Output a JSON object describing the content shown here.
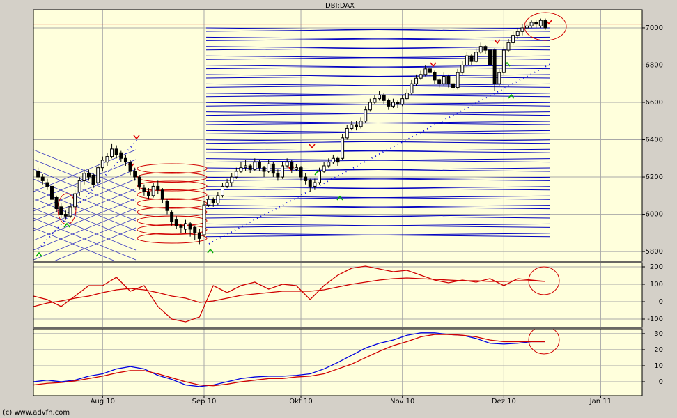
{
  "credit": "(c) www.advfn.com",
  "chart_data": [
    {
      "type": "candlestick",
      "title": "DBI:DAX",
      "up_color": "#ffffff",
      "down_color": "#000000",
      "hline": 7020,
      "hline_color": "#e03020",
      "xlim": [
        -1,
        131
      ],
      "ylim": [
        5748,
        7097
      ],
      "yticks": [
        5800,
        6000,
        6200,
        6400,
        6600,
        6800,
        7000
      ],
      "grid": true,
      "ohlc": [
        [
          6230,
          6250,
          6180,
          6200
        ],
        [
          6200,
          6215,
          6160,
          6180
        ],
        [
          6170,
          6190,
          6130,
          6150
        ],
        [
          6150,
          6160,
          6060,
          6080
        ],
        [
          6090,
          6100,
          6010,
          6030
        ],
        [
          6040,
          6060,
          5980,
          6000
        ],
        [
          6000,
          6020,
          5970,
          5990
        ],
        [
          5990,
          6060,
          5980,
          6040
        ],
        [
          6040,
          6130,
          6030,
          6110
        ],
        [
          6120,
          6200,
          6100,
          6180
        ],
        [
          6180,
          6240,
          6160,
          6220
        ],
        [
          6220,
          6240,
          6180,
          6200
        ],
        [
          6210,
          6220,
          6140,
          6160
        ],
        [
          6170,
          6270,
          6160,
          6250
        ],
        [
          6250,
          6310,
          6230,
          6290
        ],
        [
          6280,
          6330,
          6260,
          6310
        ],
        [
          6310,
          6380,
          6300,
          6350
        ],
        [
          6350,
          6370,
          6300,
          6320
        ],
        [
          6330,
          6340,
          6280,
          6300
        ],
        [
          6300,
          6320,
          6260,
          6280
        ],
        [
          6280,
          6290,
          6210,
          6230
        ],
        [
          6230,
          6250,
          6180,
          6200
        ],
        [
          6200,
          6210,
          6130,
          6150
        ],
        [
          6140,
          6160,
          6100,
          6120
        ],
        [
          6120,
          6140,
          6080,
          6100
        ],
        [
          6100,
          6170,
          6090,
          6150
        ],
        [
          6150,
          6180,
          6110,
          6130
        ],
        [
          6130,
          6140,
          6060,
          6080
        ],
        [
          6070,
          6080,
          6000,
          6020
        ],
        [
          6010,
          6020,
          5940,
          5960
        ],
        [
          5970,
          5990,
          5920,
          5940
        ],
        [
          5940,
          5950,
          5900,
          5930
        ],
        [
          5920,
          5970,
          5900,
          5950
        ],
        [
          5950,
          5960,
          5880,
          5920
        ],
        [
          5930,
          5940,
          5860,
          5900
        ],
        [
          5900,
          5920,
          5840,
          5870
        ],
        [
          5890,
          6070,
          5880,
          6050
        ],
        [
          6050,
          6100,
          6040,
          6080
        ],
        [
          6080,
          6090,
          6040,
          6060
        ],
        [
          6060,
          6120,
          6050,
          6100
        ],
        [
          6100,
          6170,
          6090,
          6150
        ],
        [
          6150,
          6190,
          6140,
          6170
        ],
        [
          6170,
          6220,
          6150,
          6200
        ],
        [
          6200,
          6250,
          6190,
          6230
        ],
        [
          6230,
          6280,
          6220,
          6250
        ],
        [
          6250,
          6290,
          6230,
          6260
        ],
        [
          6260,
          6270,
          6220,
          6240
        ],
        [
          6240,
          6300,
          6230,
          6280
        ],
        [
          6280,
          6290,
          6230,
          6250
        ],
        [
          6250,
          6260,
          6200,
          6230
        ],
        [
          6230,
          6290,
          6220,
          6270
        ],
        [
          6270,
          6280,
          6200,
          6220
        ],
        [
          6220,
          6240,
          6180,
          6200
        ],
        [
          6200,
          6280,
          6190,
          6260
        ],
        [
          6260,
          6300,
          6250,
          6280
        ],
        [
          6280,
          6290,
          6220,
          6240
        ],
        [
          6240,
          6270,
          6230,
          6250
        ],
        [
          6250,
          6260,
          6180,
          6200
        ],
        [
          6200,
          6220,
          6160,
          6180
        ],
        [
          6180,
          6190,
          6120,
          6150
        ],
        [
          6150,
          6190,
          6130,
          6170
        ],
        [
          6170,
          6250,
          6160,
          6230
        ],
        [
          6230,
          6280,
          6220,
          6260
        ],
        [
          6260,
          6300,
          6250,
          6280
        ],
        [
          6280,
          6320,
          6270,
          6300
        ],
        [
          6300,
          6310,
          6260,
          6280
        ],
        [
          6300,
          6430,
          6290,
          6410
        ],
        [
          6410,
          6480,
          6400,
          6460
        ],
        [
          6460,
          6500,
          6450,
          6480
        ],
        [
          6480,
          6500,
          6450,
          6470
        ],
        [
          6470,
          6520,
          6460,
          6500
        ],
        [
          6500,
          6580,
          6490,
          6560
        ],
        [
          6560,
          6620,
          6550,
          6600
        ],
        [
          6600,
          6640,
          6590,
          6620
        ],
        [
          6620,
          6660,
          6610,
          6640
        ],
        [
          6640,
          6650,
          6590,
          6610
        ],
        [
          6610,
          6620,
          6560,
          6580
        ],
        [
          6580,
          6620,
          6570,
          6600
        ],
        [
          6600,
          6610,
          6570,
          6590
        ],
        [
          6590,
          6640,
          6580,
          6620
        ],
        [
          6620,
          6670,
          6610,
          6650
        ],
        [
          6650,
          6720,
          6640,
          6700
        ],
        [
          6700,
          6750,
          6690,
          6730
        ],
        [
          6730,
          6770,
          6720,
          6750
        ],
        [
          6750,
          6800,
          6740,
          6780
        ],
        [
          6780,
          6790,
          6740,
          6760
        ],
        [
          6760,
          6770,
          6700,
          6720
        ],
        [
          6720,
          6730,
          6680,
          6700
        ],
        [
          6700,
          6760,
          6690,
          6740
        ],
        [
          6740,
          6750,
          6680,
          6700
        ],
        [
          6700,
          6710,
          6660,
          6680
        ],
        [
          6680,
          6780,
          6670,
          6760
        ],
        [
          6760,
          6820,
          6750,
          6800
        ],
        [
          6800,
          6870,
          6790,
          6850
        ],
        [
          6850,
          6860,
          6800,
          6820
        ],
        [
          6820,
          6890,
          6810,
          6870
        ],
        [
          6870,
          6920,
          6860,
          6900
        ],
        [
          6900,
          6910,
          6860,
          6880
        ],
        [
          6880,
          6890,
          6780,
          6800
        ],
        [
          6880,
          6890,
          6660,
          6700
        ],
        [
          6700,
          6780,
          6690,
          6760
        ],
        [
          6760,
          6900,
          6750,
          6880
        ],
        [
          6880,
          6940,
          6870,
          6920
        ],
        [
          6920,
          6980,
          6910,
          6960
        ],
        [
          6960,
          7000,
          6940,
          6980
        ],
        [
          6980,
          7020,
          6960,
          7000
        ],
        [
          7000,
          7030,
          6990,
          7010
        ],
        [
          7010,
          7040,
          7000,
          7030
        ],
        [
          7030,
          7040,
          7000,
          7020
        ],
        [
          7010,
          7050,
          7000,
          7040
        ],
        [
          7040,
          7050,
          6990,
          7000
        ]
      ]
    },
    {
      "type": "line",
      "xlim": [
        -1,
        131
      ],
      "ylim": [
        -148,
        224
      ],
      "yticks": [
        -100,
        0,
        100,
        200
      ],
      "grid": true,
      "x": [
        -1,
        2,
        5,
        8,
        11,
        14,
        17,
        20,
        23,
        26,
        29,
        32,
        35,
        38,
        41,
        44,
        47,
        50,
        53,
        56,
        59,
        62,
        65,
        68,
        71,
        74,
        77,
        80,
        83,
        86,
        89,
        92,
        95,
        98,
        101,
        104,
        107,
        110
      ],
      "series": [
        {
          "color": "#d00000",
          "values": [
            32,
            12,
            -28,
            32,
            92,
            92,
            140,
            60,
            92,
            -28,
            -100,
            -116,
            -88,
            92,
            52,
            92,
            112,
            72,
            100,
            92,
            12,
            92,
            152,
            192,
            204,
            188,
            172,
            180,
            152,
            124,
            108,
            124,
            112,
            132,
            92,
            132,
            124,
            116
          ]
        },
        {
          "color": "#d00000",
          "values": [
            -28,
            -8,
            4,
            20,
            32,
            52,
            68,
            76,
            68,
            52,
            32,
            20,
            -4,
            4,
            20,
            36,
            44,
            52,
            60,
            60,
            60,
            68,
            84,
            100,
            112,
            124,
            132,
            136,
            132,
            128,
            124,
            120,
            120,
            116,
            116,
            120,
            120,
            116
          ]
        }
      ]
    },
    {
      "type": "line",
      "xlim": [
        -1,
        131
      ],
      "ylim": [
        -8.7,
        33
      ],
      "yticks": [
        0,
        10,
        20,
        30
      ],
      "grid": true,
      "xticks": [
        {
          "value": 14,
          "label": "Aug 10"
        },
        {
          "value": 36,
          "label": "Sep 10"
        },
        {
          "value": 57,
          "label": "Okt 10"
        },
        {
          "value": 79,
          "label": "Nov 10"
        },
        {
          "value": 101,
          "label": "Dez 10"
        },
        {
          "value": 122,
          "label": "Jan 11"
        }
      ],
      "x": [
        -1,
        2,
        5,
        8,
        11,
        14,
        17,
        20,
        23,
        26,
        29,
        32,
        35,
        38,
        41,
        44,
        47,
        50,
        53,
        56,
        59,
        62,
        65,
        68,
        71,
        74,
        77,
        80,
        83,
        86,
        89,
        92,
        95,
        98,
        101,
        104,
        107,
        110
      ],
      "series": [
        {
          "color": "#0000e0",
          "values": [
            0,
            1,
            0,
            1,
            3.5,
            5,
            8,
            9.5,
            8,
            4,
            1.5,
            -2,
            -3,
            -2,
            0,
            2,
            3,
            3.5,
            3.5,
            4,
            5,
            8,
            12,
            16.5,
            21,
            24,
            26,
            29,
            30.5,
            30.5,
            29.5,
            29,
            27,
            24,
            23.5,
            24,
            25,
            25
          ]
        },
        {
          "color": "#d00000",
          "values": [
            -2,
            -1,
            -0.5,
            0.5,
            2,
            3.5,
            5.5,
            7,
            7,
            5,
            2.5,
            0,
            -2,
            -2.5,
            -1.5,
            0,
            1,
            2,
            2,
            3,
            3.5,
            5,
            8,
            11,
            15,
            19,
            22.5,
            25,
            28,
            29.5,
            29.5,
            29,
            28,
            26,
            25,
            25,
            25,
            25
          ]
        }
      ]
    }
  ]
}
